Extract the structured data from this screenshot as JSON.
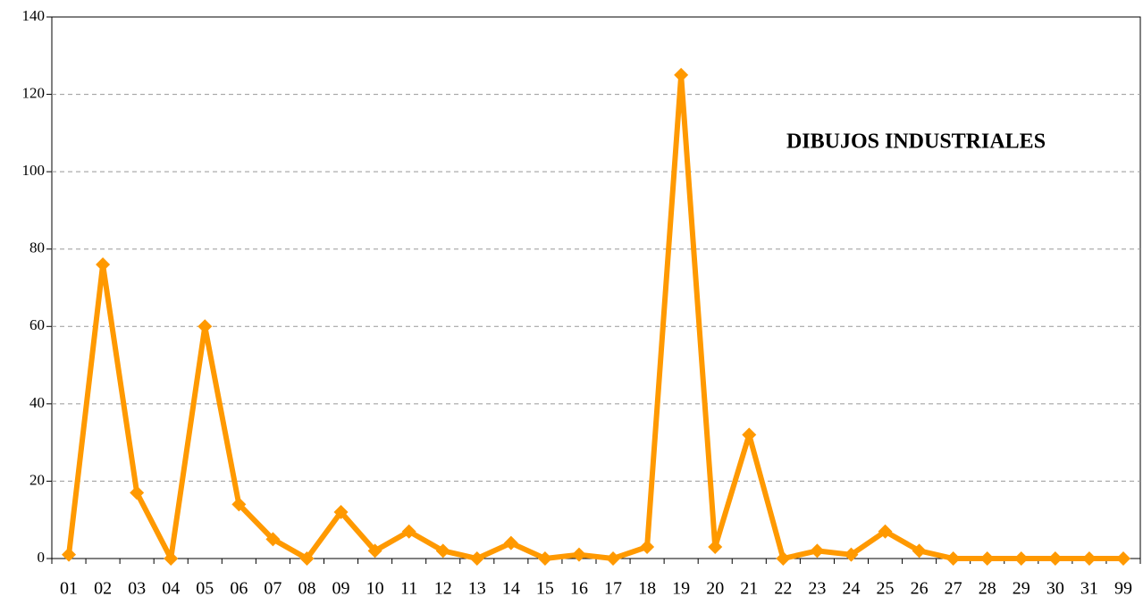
{
  "chart_data": {
    "type": "line",
    "annotation": "DIBUJOS INDUSTRIALES",
    "categories": [
      "01",
      "02",
      "03",
      "04",
      "05",
      "06",
      "07",
      "08",
      "09",
      "10",
      "11",
      "12",
      "13",
      "14",
      "15",
      "16",
      "17",
      "18",
      "19",
      "20",
      "21",
      "22",
      "23",
      "24",
      "25",
      "26",
      "27",
      "28",
      "29",
      "30",
      "31",
      "99"
    ],
    "series": [
      {
        "color": "#ff9900",
        "values": [
          1,
          76,
          17,
          0,
          60,
          14,
          5,
          0,
          12,
          2,
          7,
          2,
          0,
          4,
          0,
          1,
          0,
          3,
          125,
          3,
          32,
          0,
          2,
          1,
          7,
          2,
          0,
          0,
          0,
          0,
          0,
          0
        ]
      }
    ],
    "ylim": [
      0,
      140
    ],
    "yticks": [
      0,
      20,
      40,
      60,
      80,
      100,
      120,
      140
    ],
    "grid": true
  }
}
